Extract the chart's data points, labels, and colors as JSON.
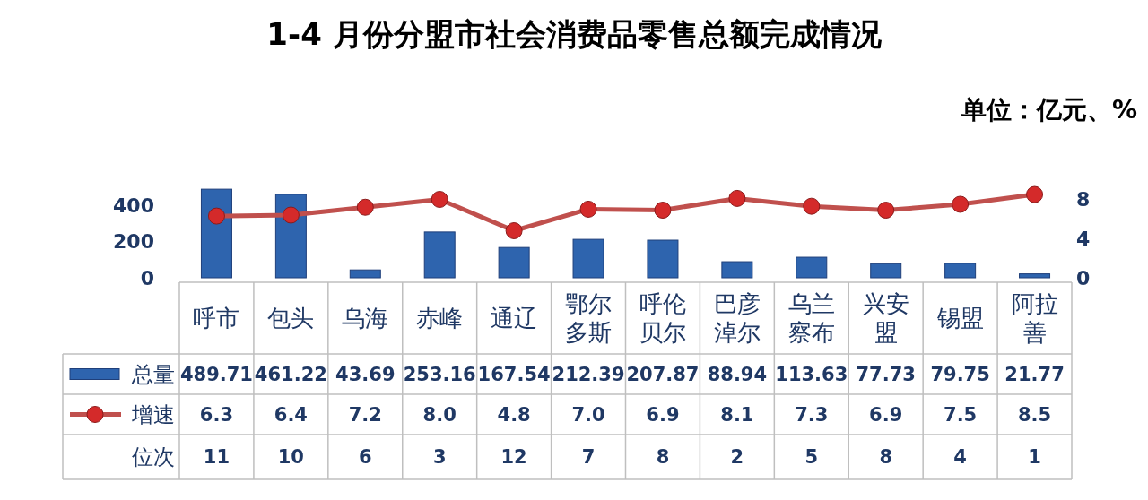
{
  "chart_data": {
    "type": "bar",
    "title": "1-4 月份分盟市社会消费品零售总额完成情况",
    "annotations": [
      "单位：亿元、%",
      "位次",
      "11",
      "10",
      "6",
      "3",
      "12",
      "7",
      "8",
      "2",
      "5",
      "8",
      "4",
      "1"
    ],
    "categories": [
      "呼市",
      "包头",
      "乌海",
      "赤峰",
      "通辽",
      "鄂尔多斯",
      "呼伦贝尔",
      "巴彦淖尔",
      "乌兰察布",
      "兴安盟",
      "锡盟",
      "阿拉善"
    ],
    "series": [
      {
        "name": "总量",
        "color": "#2e64ae",
        "values": [
          489.71,
          461.22,
          43.69,
          253.16,
          167.54,
          212.39,
          207.87,
          88.94,
          113.63,
          77.73,
          79.75,
          21.77
        ],
        "value_labels": [
          "489.71",
          "461.22",
          "43.69",
          "253.16",
          "167.54",
          "212.39",
          "207.87",
          "88.94",
          "113.63",
          "77.73",
          "79.75",
          "21.77"
        ]
      },
      {
        "name": "增速",
        "type": "line",
        "axis": "y2",
        "color": "#c0504d",
        "values": [
          6.3,
          6.4,
          7.2,
          8.0,
          4.8,
          7.0,
          6.9,
          8.1,
          7.3,
          6.9,
          7.5,
          8.5
        ],
        "value_labels": [
          "6.3",
          "6.4",
          "7.2",
          "8.0",
          "4.8",
          "7.0",
          "6.9",
          "8.1",
          "7.3",
          "6.9",
          "7.5",
          "8.5"
        ]
      }
    ],
    "marker": "circle",
    "legend": "bottom",
    "ylim": [
      0,
      520
    ],
    "yticks": [
      0,
      200,
      400
    ],
    "y2lim": [
      0,
      9.6
    ],
    "y2ticks": [
      0,
      4,
      8
    ]
  }
}
